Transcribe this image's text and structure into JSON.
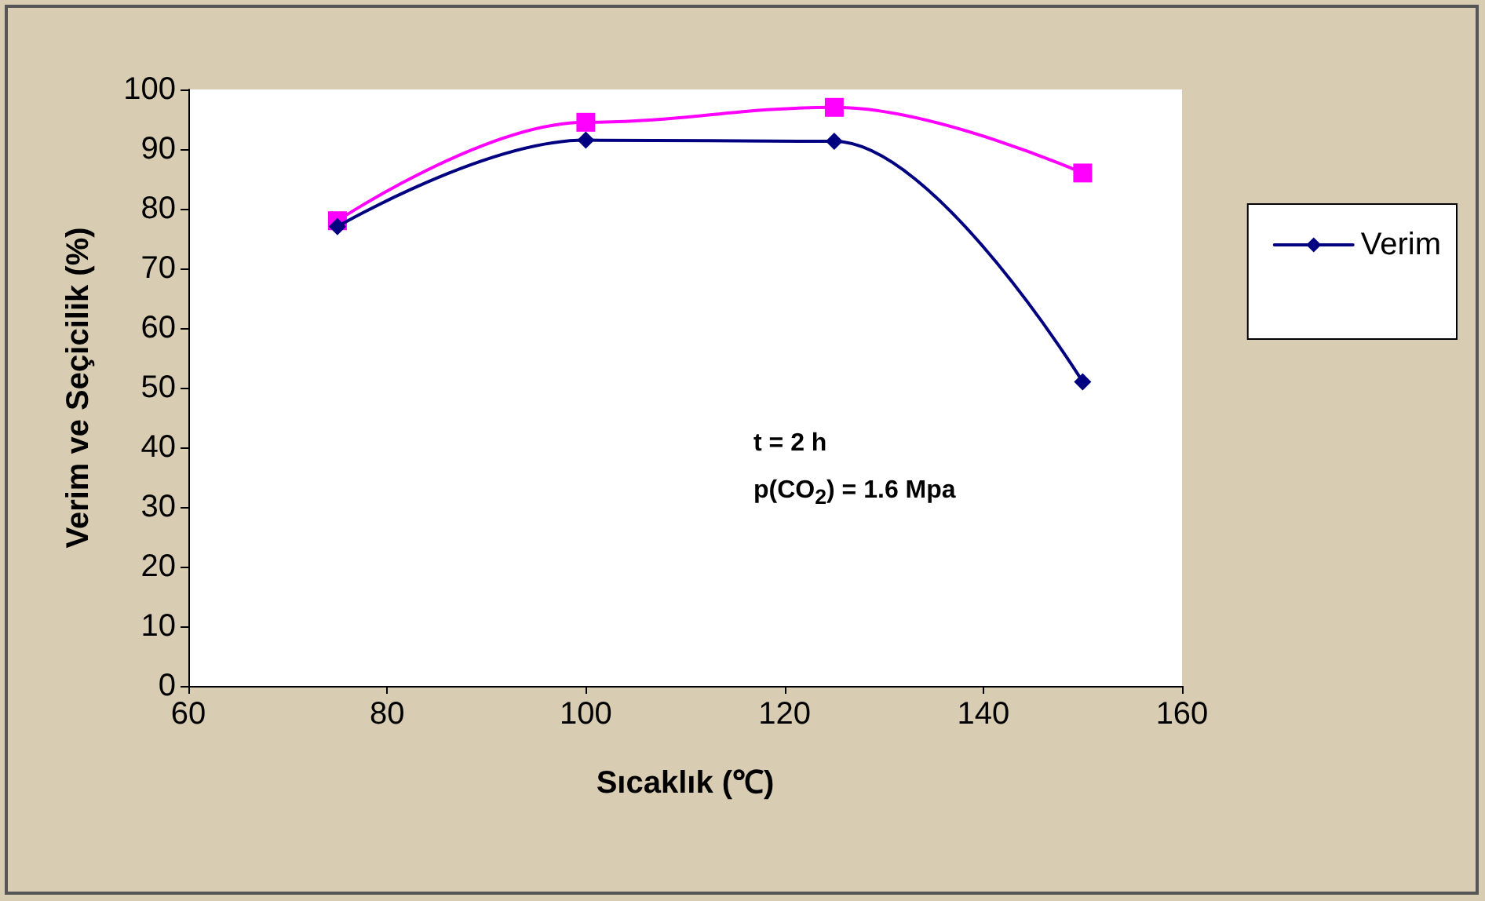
{
  "chart_data": {
    "type": "line",
    "xlabel": "Sıcaklık (℃)",
    "ylabel": "Verim ve Seçicilik (%)",
    "x": [
      75,
      100,
      125,
      150
    ],
    "series": [
      {
        "name": "Verim",
        "color": "#000080",
        "marker": "diamond",
        "values": [
          77,
          91.5,
          91.3,
          51
        ]
      },
      {
        "color": "#ff00ff",
        "marker": "square",
        "values": [
          78,
          94.5,
          97,
          86
        ]
      }
    ],
    "xlim": [
      60,
      160
    ],
    "xticks": [
      60,
      80,
      100,
      120,
      140,
      160
    ],
    "ylim": [
      0,
      100
    ],
    "yticks": [
      0,
      10,
      20,
      30,
      40,
      50,
      60,
      70,
      80,
      90,
      100
    ],
    "annotations": [
      "t = 2 h",
      "p(CO$_{2}$) = 1.6 Mpa"
    ],
    "legend": "right",
    "grid": false,
    "line_style": "solid"
  }
}
